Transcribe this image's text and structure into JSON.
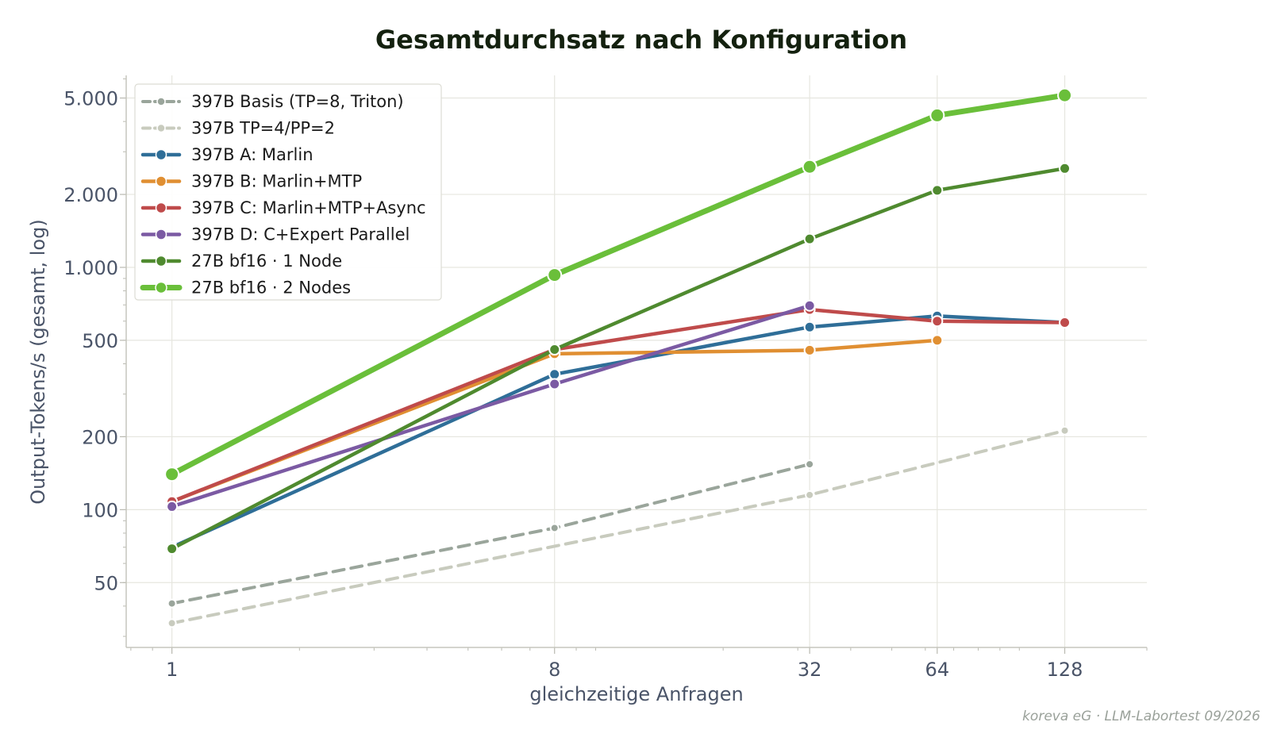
{
  "chart_data": {
    "type": "line",
    "title": "Gesamtdurchsatz nach Konfiguration",
    "xlabel": "gleichzeitige Anfragen",
    "ylabel": "Output-Tokens/s (gesamt, log)",
    "x_scale": "log2",
    "y_scale": "log",
    "xlim": [
      0.78,
      200
    ],
    "ylim": [
      27,
      6200
    ],
    "x_ticks": [
      1,
      8,
      32,
      64,
      128
    ],
    "x_tick_labels": [
      "1",
      "8",
      "32",
      "64",
      "128"
    ],
    "y_ticks": [
      50,
      100,
      200,
      500,
      1000,
      2000,
      5000
    ],
    "y_tick_labels": [
      "50",
      "100",
      "200",
      "500",
      "1.000",
      "2.000",
      "5.000"
    ],
    "grid": true,
    "legend_position": "top-left",
    "credit": "koreva eG · LLM-Labortest 09/2026",
    "series": [
      {
        "name": "397B Basis (TP=8, Triton)",
        "color": "#9aa59b",
        "style": "dashed",
        "marker_size": "small",
        "x": [
          1,
          8,
          32
        ],
        "y": [
          41,
          84,
          154
        ]
      },
      {
        "name": "397B TP=4/PP=2",
        "color": "#c8cbbe",
        "style": "dashed",
        "marker_size": "small",
        "x": [
          1,
          32,
          128
        ],
        "y": [
          34,
          115,
          212
        ]
      },
      {
        "name": "397B A: Marlin",
        "color": "#2f6e98",
        "style": "solid",
        "marker_size": "medium",
        "x": [
          1,
          8,
          32,
          64,
          128
        ],
        "y": [
          70,
          362,
          567,
          630,
          592
        ]
      },
      {
        "name": "397B B: Marlin+MTP",
        "color": "#e08f32",
        "style": "solid",
        "marker_size": "medium",
        "x": [
          1,
          8,
          32,
          64
        ],
        "y": [
          108,
          440,
          455,
          500
        ]
      },
      {
        "name": "397B C: Marlin+MTP+Async",
        "color": "#bf4b4b",
        "style": "solid",
        "marker_size": "medium",
        "x": [
          1,
          8,
          32,
          64,
          128
        ],
        "y": [
          108,
          458,
          670,
          600,
          592
        ]
      },
      {
        "name": "397B D: C+Expert Parallel",
        "color": "#7b5aa3",
        "style": "solid",
        "marker_size": "medium",
        "x": [
          1,
          8,
          32
        ],
        "y": [
          103,
          330,
          695
        ]
      },
      {
        "name": "27B bf16 · 1 Node",
        "color": "#4f8a2f",
        "style": "solid",
        "marker_size": "medium",
        "x": [
          1,
          8,
          32,
          64,
          128
        ],
        "y": [
          69,
          458,
          1310,
          2080,
          2560
        ]
      },
      {
        "name": "27B bf16 · 2 Nodes",
        "color": "#6abf3a",
        "style": "solid",
        "marker_size": "large",
        "x": [
          1,
          8,
          32,
          64,
          128
        ],
        "y": [
          140,
          930,
          2600,
          4240,
          5130
        ]
      }
    ]
  }
}
